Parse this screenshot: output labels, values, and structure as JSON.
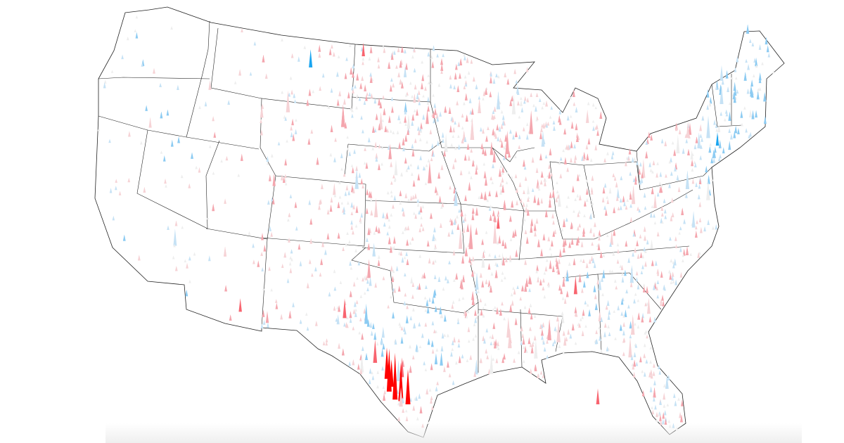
{
  "map": {
    "type": "spike-map",
    "subject": "",
    "outline_color": "#222222",
    "palette": {
      "strong_red": "#ff0000",
      "red": "#f8646f",
      "pink": "#f4a6ae",
      "light_pink": "#f6d3d6",
      "neutral": "#eeeeee",
      "light_blue": "#c6e2f5",
      "blue": "#8ccbf2",
      "strong_blue": "#1aa5f0",
      "deep_blue": "#0a6fd8"
    },
    "notable_spikes": [
      {
        "lon": -98.7,
        "lat": 26.4,
        "shift": 55
      },
      {
        "lon": -99.2,
        "lat": 26.9,
        "shift": 50
      },
      {
        "lon": -98.2,
        "lat": 26.3,
        "shift": 45
      },
      {
        "lon": -97.6,
        "lat": 26.1,
        "shift": 40
      },
      {
        "lon": -99.4,
        "lat": 27.7,
        "shift": 35
      },
      {
        "lon": -100.4,
        "lat": 28.7,
        "shift": 25
      },
      {
        "lon": -99.0,
        "lat": 27.2,
        "shift": 30
      },
      {
        "lon": -98.1,
        "lat": 27.8,
        "shift": 20
      },
      {
        "lon": -103.0,
        "lat": 31.5,
        "shift": 20
      },
      {
        "lon": -111.9,
        "lat": 31.9,
        "shift": 12
      },
      {
        "lon": -109.6,
        "lat": 31.2,
        "shift": 10
      },
      {
        "lon": -81.4,
        "lat": 26.1,
        "shift": 15
      },
      {
        "lon": -101.4,
        "lat": 47.9,
        "shift": 12
      },
      {
        "lon": -83.3,
        "lat": 33.0,
        "shift": 18
      },
      {
        "lon": -89.9,
        "lat": 37.1,
        "shift": 12
      },
      {
        "lon": -105.9,
        "lat": 47.2,
        "shift": -18
      },
      {
        "lon": -97.8,
        "lat": 44.4,
        "shift": -8
      },
      {
        "lon": -71.2,
        "lat": 42.3,
        "shift": -12
      },
      {
        "lon": -84.0,
        "lat": 33.8,
        "shift": -10
      },
      {
        "lon": -80.9,
        "lat": 34.0,
        "shift": -6
      }
    ]
  }
}
